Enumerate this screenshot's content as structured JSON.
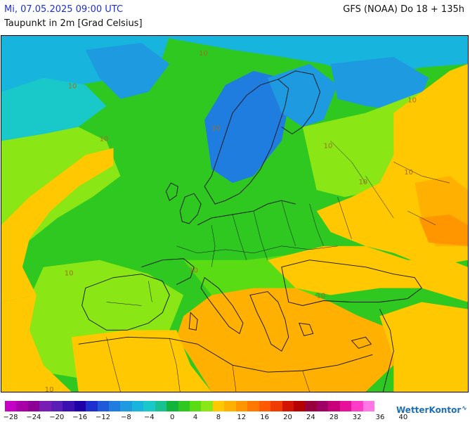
{
  "header": {
    "datetime": "Mi, 07.05.2025 09:00 UTC",
    "model": "GFS (NOAA) Do 18 + 135h",
    "parameter": "Taupunkt in 2m [Grad Celsius]"
  },
  "map": {
    "contour_labels": [
      {
        "id": "atlantic-north-a",
        "text": "10"
      },
      {
        "id": "atlantic-north-b",
        "text": "10"
      },
      {
        "id": "atlantic-mid",
        "text": "10"
      },
      {
        "id": "scandinavia",
        "text": "10"
      },
      {
        "id": "baltic",
        "text": "10"
      },
      {
        "id": "russia-east",
        "text": "10"
      },
      {
        "id": "caspian",
        "text": "10"
      },
      {
        "id": "turkey",
        "text": "10"
      },
      {
        "id": "alps",
        "text": "10"
      },
      {
        "id": "spain",
        "text": "10"
      },
      {
        "id": "sahara-west",
        "text": "10"
      },
      {
        "id": "balkans",
        "text": "10"
      }
    ]
  },
  "legend": {
    "colors": [
      "#c300c3",
      "#a800a8",
      "#8c0096",
      "#7a1db5",
      "#5a1db5",
      "#3b10b0",
      "#1e00a8",
      "#1e2fd0",
      "#1f5ad8",
      "#1f7de0",
      "#1e9ae0",
      "#17b4de",
      "#19c8c8",
      "#19c090",
      "#10b43a",
      "#2ec820",
      "#5adc14",
      "#8ae614",
      "#ffc800",
      "#ffb000",
      "#ff9600",
      "#ff7800",
      "#ff5a00",
      "#f03c00",
      "#d21400",
      "#b40000",
      "#96003c",
      "#a00064",
      "#c8007a",
      "#e6109a",
      "#ff3cc8",
      "#ff78e6"
    ],
    "ticks": [
      "−28",
      "−24",
      "−20",
      "−16",
      "−12",
      "−8",
      "−4",
      "0",
      "4",
      "8",
      "12",
      "16",
      "20",
      "24",
      "28",
      "32",
      "36",
      "40"
    ]
  },
  "brand": {
    "name": "WetterKontor",
    "mark": "∿"
  }
}
